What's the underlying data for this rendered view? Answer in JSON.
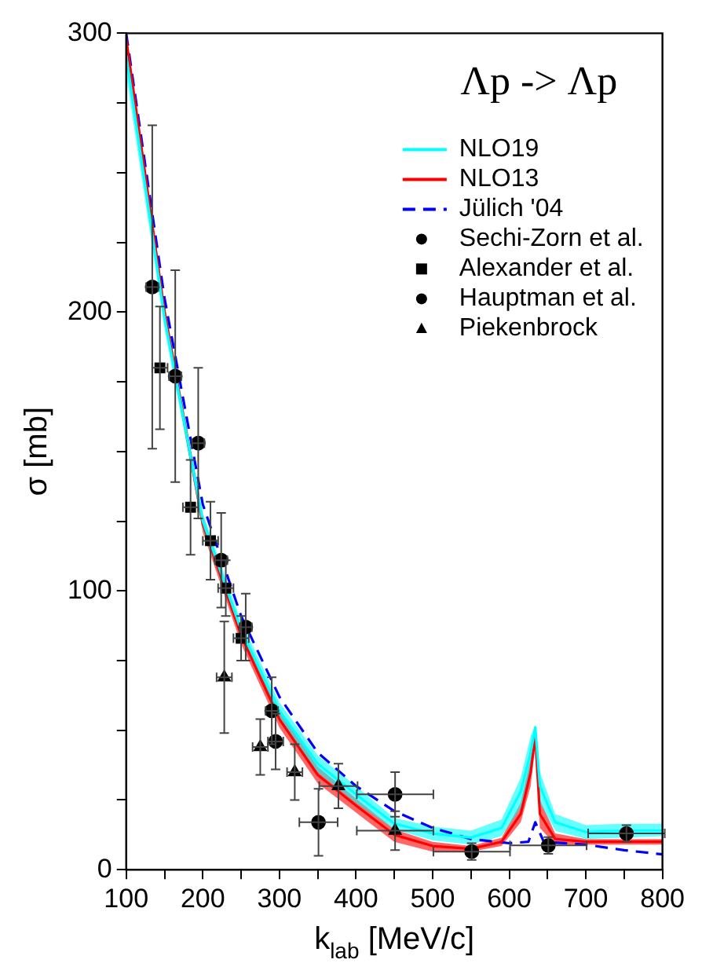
{
  "chart_data": {
    "type": "line",
    "title": "Λp -> Λp",
    "xlabel": "k$_{lab}$ [MeV/c]",
    "ylabel": "σ [mb]",
    "xlim": [
      100,
      800
    ],
    "xticks": [
      100,
      {
        "value": 150,
        "label": null
      },
      200,
      {
        "value": 250,
        "label": null
      },
      300,
      {
        "value": 350,
        "label": null
      },
      400,
      {
        "value": 450,
        "label": null
      },
      500,
      {
        "value": 550,
        "label": null
      },
      600,
      {
        "value": 650,
        "label": null
      },
      700,
      {
        "value": 750,
        "label": null
      },
      800
    ],
    "ylim": [
      0,
      300
    ],
    "yticks": [
      0,
      {
        "value": 25,
        "label": null
      },
      {
        "value": 50,
        "label": null
      },
      {
        "value": 75,
        "label": null
      },
      100,
      {
        "value": 125,
        "label": null
      },
      {
        "value": 150,
        "label": null
      },
      {
        "value": 175,
        "label": null
      },
      200,
      {
        "value": 225,
        "label": null
      },
      {
        "value": 250,
        "label": null
      },
      {
        "value": 275,
        "label": null
      },
      300
    ],
    "grid": false,
    "legend": "top right",
    "series": [
      {
        "name": "NLO19",
        "color": "#00ffff",
        "line_style": "solid",
        "marker": "none",
        "x": [
          100,
          150,
          200,
          250,
          300,
          350,
          400,
          450,
          500,
          550,
          590,
          615,
          628,
          634,
          640,
          660,
          700,
          750,
          800
        ],
        "values": [
          292,
          198,
          125,
          86,
          57,
          38,
          27,
          16.5,
          13,
          11.5,
          15,
          28,
          42,
          51,
          30,
          17,
          13.5,
          14,
          14
        ],
        "lower": [
          285,
          194,
          122,
          83,
          54,
          35,
          24,
          14.5,
          10.5,
          9,
          12,
          22,
          35,
          45,
          24,
          14,
          11,
          11.5,
          12
        ],
        "upper": [
          300,
          202,
          128,
          89,
          60,
          41,
          30,
          18.5,
          15.5,
          14,
          18,
          33,
          48,
          52,
          35,
          20,
          16,
          16.5,
          16.5
        ]
      },
      {
        "name": "NLO13",
        "color": "#ff0000",
        "line_style": "solid",
        "marker": "none",
        "x": [
          100,
          150,
          200,
          250,
          300,
          350,
          400,
          450,
          500,
          550,
          590,
          615,
          628,
          634,
          640,
          660,
          700,
          750,
          800
        ],
        "values": [
          298,
          200,
          124,
          84,
          54,
          34,
          23,
          12.5,
          8.5,
          7.5,
          10,
          20,
          35,
          48,
          20,
          11,
          10,
          10,
          10
        ],
        "lower": [
          295,
          197,
          121,
          81,
          51,
          31,
          20.5,
          10,
          6.5,
          6.5,
          8.5,
          17,
          30,
          45,
          15,
          9,
          9,
          9,
          9
        ],
        "upper": [
          300,
          203,
          127,
          87,
          57,
          37,
          25.5,
          14.5,
          10,
          8.5,
          11.5,
          24,
          40,
          49,
          25,
          13,
          11,
          11,
          11
        ]
      },
      {
        "name": "Jülich '04",
        "color": "#0000ff",
        "line_style": "dashed",
        "marker": "none",
        "x": [
          100,
          150,
          200,
          250,
          300,
          350,
          400,
          450,
          500,
          550,
          600,
          625,
          634,
          645,
          700,
          750,
          800
        ],
        "values": [
          300,
          205,
          131,
          91,
          62,
          42,
          30,
          21,
          15,
          11,
          9.5,
          10,
          17,
          10,
          9,
          7,
          5.5
        ]
      },
      {
        "name": "Sechi-Zorn et al.",
        "type": "scatter",
        "color": "#000000",
        "marker": "circle",
        "x": [
          134,
          164,
          194,
          224,
          256,
          290
        ],
        "values": [
          209,
          177,
          153,
          111,
          87,
          57
        ],
        "errors": [
          58,
          38,
          27,
          17,
          12,
          12
        ],
        "xerrors": [
          8,
          8,
          8,
          8,
          8,
          8
        ]
      },
      {
        "name": "Alexander et al.",
        "type": "scatter",
        "color": "#000000",
        "marker": "square",
        "x": [
          144,
          184,
          210,
          230,
          250
        ],
        "values": [
          180,
          130,
          118,
          101,
          83
        ],
        "errors": [
          22,
          17,
          14,
          10,
          8
        ],
        "xerrors": [
          10,
          10,
          10,
          10,
          10
        ]
      },
      {
        "name": "Hauptman et al.",
        "type": "scatter",
        "color": "#000000",
        "marker": "circle",
        "x": [
          295,
          351,
          451,
          551,
          651,
          753
        ],
        "values": [
          46,
          17,
          27,
          6.5,
          8.7,
          13
        ],
        "errors": [
          10,
          12,
          8,
          3,
          3,
          3
        ],
        "xerrors": [
          10,
          25,
          50,
          50,
          50,
          50
        ]
      },
      {
        "name": "Piekenbrock",
        "type": "scatter",
        "color": "#000000",
        "marker": "triangle",
        "x": [
          228,
          275,
          320,
          377,
          451
        ],
        "values": [
          69,
          44,
          35,
          30,
          14
        ],
        "errors": [
          20,
          10,
          10,
          8,
          7
        ],
        "xerrors": [
          10,
          10,
          10,
          25,
          50
        ]
      }
    ]
  }
}
